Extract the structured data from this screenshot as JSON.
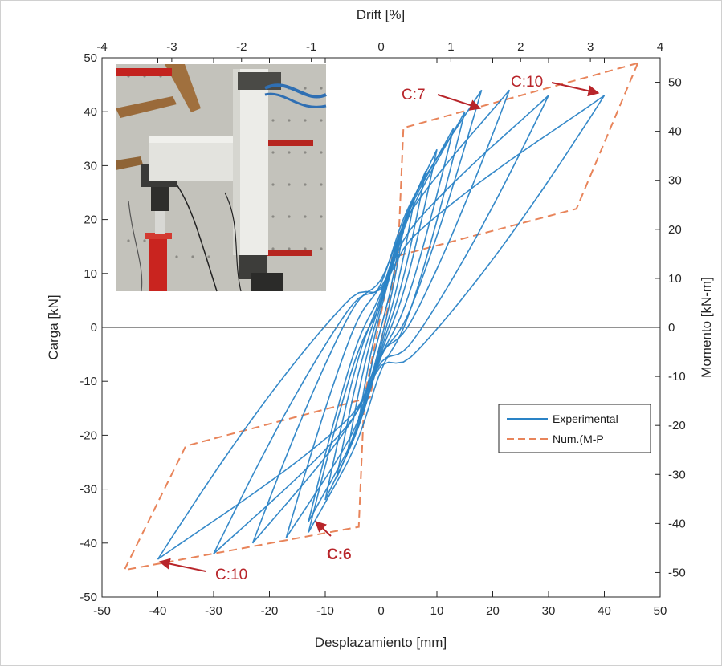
{
  "chart_data": {
    "type": "line",
    "xlabel": "Desplazamiento [mm]",
    "ylabel": "Carga [kN]",
    "top_xlabel": "Drift [%]",
    "right_ylabel": "Momento [kN-m]",
    "xlim": [
      -50,
      50
    ],
    "ylim": [
      -50,
      50
    ],
    "top_xlim": [
      -4,
      4
    ],
    "right_ylim": [
      -55,
      55
    ],
    "x_ticks": [
      "-50",
      "-40",
      "-30",
      "-20",
      "-10",
      "0",
      "10",
      "20",
      "30",
      "40",
      "50"
    ],
    "y_ticks": [
      "-50",
      "-40",
      "-30",
      "-20",
      "-10",
      "0",
      "10",
      "20",
      "30",
      "40",
      "50"
    ],
    "top_ticks": [
      "-4",
      "-3",
      "-2",
      "-1",
      "0",
      "1",
      "2",
      "3",
      "4"
    ],
    "right_ticks": [
      "-50",
      "-40",
      "-30",
      "-20",
      "-10",
      "0",
      "10",
      "20",
      "30",
      "40",
      "50"
    ],
    "legend": {
      "placement": "right-middle",
      "entries": [
        "Experimental",
        "Num.(M-P"
      ]
    },
    "grid": false,
    "series": [
      {
        "name": "Experimental",
        "color": "#2a83c6",
        "style": "solid",
        "loops": [
          {
            "cycle": 1,
            "dmax": 4,
            "fmax": 18,
            "dmin": -4,
            "fmin": -17
          },
          {
            "cycle": 2,
            "dmax": 6,
            "fmax": 24,
            "dmin": -6,
            "fmin": -23
          },
          {
            "cycle": 3,
            "dmax": 8,
            "fmax": 29,
            "dmin": -8,
            "fmin": -28
          },
          {
            "cycle": 4,
            "dmax": 10,
            "fmax": 33,
            "dmin": -10,
            "fmin": -32
          },
          {
            "cycle": 5,
            "dmax": 13,
            "fmax": 37,
            "dmin": -13,
            "fmin": -36
          },
          {
            "cycle": 6,
            "dmax": 15,
            "fmax": 40,
            "dmin": -13,
            "fmin": -38
          },
          {
            "cycle": 7,
            "dmax": 18,
            "fmax": 44,
            "dmin": -17,
            "fmin": -39
          },
          {
            "cycle": 8,
            "dmax": 23,
            "fmax": 44,
            "dmin": -23,
            "fmin": -40
          },
          {
            "cycle": 9,
            "dmax": 30,
            "fmax": 43,
            "dmin": -30,
            "fmin": -42
          },
          {
            "cycle": 10,
            "dmax": 40,
            "fmax": 43,
            "dmin": -40,
            "fmin": -43
          }
        ]
      },
      {
        "name": "Num.(M-P",
        "color": "#e8845a",
        "style": "dashed",
        "loop": [
          {
            "x": 46,
            "y": 49
          },
          {
            "x": 35,
            "y": 22
          },
          {
            "x": 2,
            "y": 13
          },
          {
            "x": -3,
            "y": -13
          },
          {
            "x": -4,
            "y": -37
          },
          {
            "x": -46,
            "y": -45
          },
          {
            "x": -35,
            "y": -22
          },
          {
            "x": -2,
            "y": -13
          },
          {
            "x": 3,
            "y": 13
          },
          {
            "x": 4,
            "y": 37
          },
          {
            "x": 46,
            "y": 49
          }
        ]
      }
    ],
    "annotations": [
      {
        "text": "C:7",
        "point": {
          "x": 18,
          "y": 44
        },
        "bold": false
      },
      {
        "text": "C:10",
        "point": {
          "x": 40,
          "y": 44
        },
        "bold": false
      },
      {
        "text": "C:6",
        "point": {
          "x": -12,
          "y": -36
        },
        "bold": true
      },
      {
        "text": "C:10",
        "point": {
          "x": -41,
          "y": -44
        },
        "bold": false
      }
    ],
    "inset_photo": {
      "placement": "top-left",
      "subject": "column-beam test specimen in lab"
    }
  }
}
